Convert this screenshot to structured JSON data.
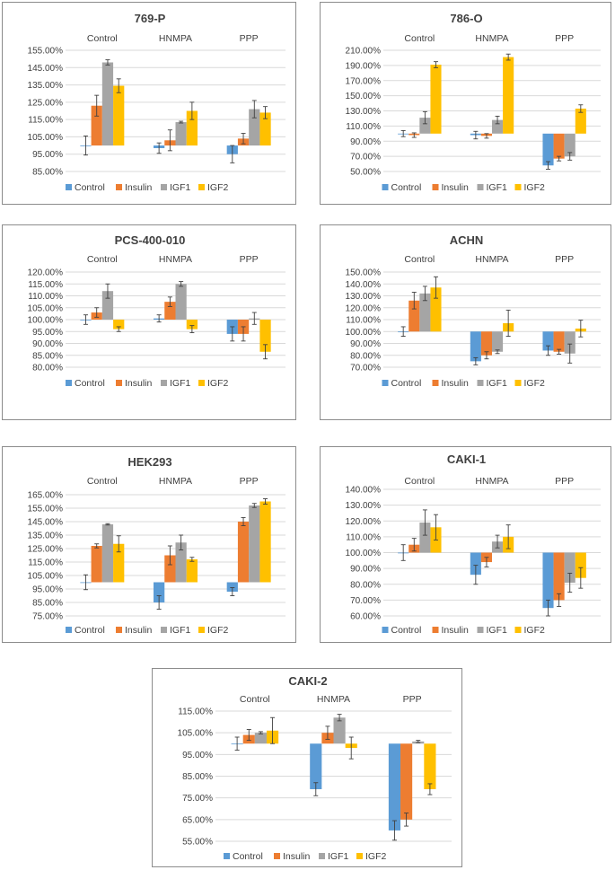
{
  "colors": {
    "Control": "#5b9bd5",
    "Insulin": "#ed7d31",
    "IGF1": "#a5a5a5",
    "IGF2": "#ffc000"
  },
  "chart_data": [
    {
      "type": "bar",
      "title": "769-P",
      "groups": [
        "Control",
        "HNMPA",
        "PPP"
      ],
      "series": [
        {
          "name": "Control",
          "values": [
            100.0,
            98.5,
            95.0
          ],
          "errors": [
            5.5,
            3.0,
            5.0
          ]
        },
        {
          "name": "Insulin",
          "values": [
            123.0,
            103.0,
            104.0
          ],
          "errors": [
            6.0,
            6.0,
            3.0
          ]
        },
        {
          "name": "IGF1",
          "values": [
            148.0,
            113.5,
            121.0
          ],
          "errors": [
            1.5,
            0.5,
            5.0
          ]
        },
        {
          "name": "IGF2",
          "values": [
            134.5,
            120.0,
            119.0
          ],
          "errors": [
            4.0,
            5.0,
            3.5
          ]
        }
      ],
      "ylim": [
        85,
        155
      ],
      "yticks": [
        85,
        95,
        105,
        115,
        125,
        135,
        145,
        155
      ],
      "ytick_labels": [
        "85.00%",
        "95.00%",
        "105.00%",
        "115.00%",
        "125.00%",
        "135.00%",
        "145.00%",
        "155.00%"
      ],
      "baseline": 100,
      "legend": "bottom"
    },
    {
      "type": "bar",
      "title": "786-O",
      "groups": [
        "Control",
        "HNMPA",
        "PPP"
      ],
      "series": [
        {
          "name": "Control",
          "values": [
            100.0,
            98.0,
            58.0
          ],
          "errors": [
            4.0,
            5.0,
            5.0
          ]
        },
        {
          "name": "Insulin",
          "values": [
            98.0,
            97.0,
            67.0
          ],
          "errors": [
            3.0,
            3.0,
            3.0
          ]
        },
        {
          "name": "IGF1",
          "values": [
            121.0,
            118.0,
            70.0
          ],
          "errors": [
            8.0,
            5.0,
            5.0
          ]
        },
        {
          "name": "IGF2",
          "values": [
            191.0,
            201.0,
            133.0
          ],
          "errors": [
            4.0,
            4.0,
            5.0
          ]
        }
      ],
      "ylim": [
        50,
        210
      ],
      "yticks": [
        50,
        70,
        90,
        110,
        130,
        150,
        170,
        190,
        210
      ],
      "ytick_labels": [
        "50.00%",
        "70.00%",
        "90.00%",
        "110.00%",
        "130.00%",
        "150.00%",
        "170.00%",
        "190.00%",
        "210.00%"
      ],
      "baseline": 100,
      "legend": "bottom"
    },
    {
      "type": "bar",
      "title": "PCS-400-010",
      "groups": [
        "Control",
        "HNMPA",
        "PPP"
      ],
      "series": [
        {
          "name": "Control",
          "values": [
            100.0,
            100.5,
            94.0
          ],
          "errors": [
            2.0,
            1.5,
            3.0
          ]
        },
        {
          "name": "Insulin",
          "values": [
            103.0,
            107.5,
            94.0
          ],
          "errors": [
            2.0,
            2.0,
            3.0
          ]
        },
        {
          "name": "IGF1",
          "values": [
            112.0,
            115.0,
            100.5
          ],
          "errors": [
            3.0,
            1.0,
            2.5
          ]
        },
        {
          "name": "IGF2",
          "values": [
            96.0,
            96.0,
            86.5
          ],
          "errors": [
            1.0,
            1.5,
            3.0
          ]
        }
      ],
      "ylim": [
        80,
        120
      ],
      "yticks": [
        80,
        85,
        90,
        95,
        100,
        105,
        110,
        115,
        120
      ],
      "ytick_labels": [
        "80.00%",
        "85.00%",
        "90.00%",
        "95.00%",
        "100.00%",
        "105.00%",
        "110.00%",
        "115.00%",
        "120.00%"
      ],
      "baseline": 100,
      "legend": "bottom"
    },
    {
      "type": "bar",
      "title": "ACHN",
      "groups": [
        "Control",
        "HNMPA",
        "PPP"
      ],
      "series": [
        {
          "name": "Control",
          "values": [
            100.0,
            75.0,
            84.0
          ],
          "errors": [
            4.0,
            3.0,
            4.0
          ]
        },
        {
          "name": "Insulin",
          "values": [
            126.0,
            80.0,
            83.0
          ],
          "errors": [
            7.0,
            3.0,
            2.0
          ]
        },
        {
          "name": "IGF1",
          "values": [
            132.0,
            83.0,
            81.5
          ],
          "errors": [
            6.0,
            1.5,
            8.0
          ]
        },
        {
          "name": "IGF2",
          "values": [
            137.0,
            107.0,
            102.5
          ],
          "errors": [
            9.0,
            11.0,
            7.0
          ]
        }
      ],
      "ylim": [
        70,
        150
      ],
      "yticks": [
        70,
        80,
        90,
        100,
        110,
        120,
        130,
        140,
        150
      ],
      "ytick_labels": [
        "70.00%",
        "80.00%",
        "90.00%",
        "100.00%",
        "110.00%",
        "120.00%",
        "130.00%",
        "140.00%",
        "150.00%"
      ],
      "baseline": 100,
      "legend": "bottom"
    },
    {
      "type": "bar",
      "title": "HEK293",
      "groups": [
        "Control",
        "HNMPA",
        "PPP"
      ],
      "series": [
        {
          "name": "Control",
          "values": [
            100.0,
            85.0,
            93.0
          ],
          "errors": [
            5.5,
            5.0,
            3.0
          ]
        },
        {
          "name": "Insulin",
          "values": [
            127.0,
            120.0,
            145.0
          ],
          "errors": [
            1.5,
            7.0,
            3.0
          ]
        },
        {
          "name": "IGF1",
          "values": [
            143.0,
            129.5,
            157.0
          ],
          "errors": [
            0.5,
            5.5,
            1.5
          ]
        },
        {
          "name": "IGF2",
          "values": [
            128.5,
            117.0,
            160.0
          ],
          "errors": [
            6.0,
            1.5,
            2.0
          ]
        }
      ],
      "ylim": [
        75,
        165
      ],
      "yticks": [
        75,
        85,
        95,
        105,
        115,
        125,
        135,
        145,
        155,
        165
      ],
      "ytick_labels": [
        "75.00%",
        "85.00%",
        "95.00%",
        "105.00%",
        "115.00%",
        "125.00%",
        "135.00%",
        "145.00%",
        "155.00%",
        "165.00%"
      ],
      "baseline": 100,
      "legend": "bottom"
    },
    {
      "type": "bar",
      "title": "CAKI-1",
      "groups": [
        "Control",
        "HNMPA",
        "PPP"
      ],
      "series": [
        {
          "name": "Control",
          "values": [
            100.0,
            86.0,
            65.0
          ],
          "errors": [
            5.0,
            6.0,
            5.0
          ]
        },
        {
          "name": "Insulin",
          "values": [
            105.0,
            94.0,
            70.0
          ],
          "errors": [
            4.0,
            3.0,
            4.0
          ]
        },
        {
          "name": "IGF1",
          "values": [
            119.0,
            107.0,
            81.0
          ],
          "errors": [
            8.0,
            4.0,
            6.0
          ]
        },
        {
          "name": "IGF2",
          "values": [
            116.0,
            110.0,
            84.0
          ],
          "errors": [
            8.0,
            7.5,
            6.5
          ]
        }
      ],
      "ylim": [
        60,
        140
      ],
      "yticks": [
        60,
        70,
        80,
        90,
        100,
        110,
        120,
        130,
        140
      ],
      "ytick_labels": [
        "60.00%",
        "70.00%",
        "80.00%",
        "90.00%",
        "100.00%",
        "110.00%",
        "120.00%",
        "130.00%",
        "140.00%"
      ],
      "baseline": 100,
      "legend": "bottom"
    },
    {
      "type": "bar",
      "title": "CAKI-2",
      "groups": [
        "Control",
        "HNMPA",
        "PPP"
      ],
      "series": [
        {
          "name": "Control",
          "values": [
            100.0,
            79.0,
            60.0
          ],
          "errors": [
            3.0,
            3.0,
            4.5
          ]
        },
        {
          "name": "Insulin",
          "values": [
            104.0,
            105.0,
            65.0
          ],
          "errors": [
            2.5,
            3.0,
            3.0
          ]
        },
        {
          "name": "IGF1",
          "values": [
            105.0,
            112.0,
            101.0
          ],
          "errors": [
            0.5,
            1.5,
            0.5
          ]
        },
        {
          "name": "IGF2",
          "values": [
            106.0,
            98.0,
            79.0
          ],
          "errors": [
            6.0,
            5.0,
            2.5
          ]
        }
      ],
      "ylim": [
        55,
        115
      ],
      "yticks": [
        55,
        65,
        75,
        85,
        95,
        105,
        115
      ],
      "ytick_labels": [
        "55.00%",
        "65.00%",
        "75.00%",
        "85.00%",
        "95.00%",
        "105.00%",
        "115.00%"
      ],
      "baseline": 100,
      "legend": "bottom"
    }
  ]
}
